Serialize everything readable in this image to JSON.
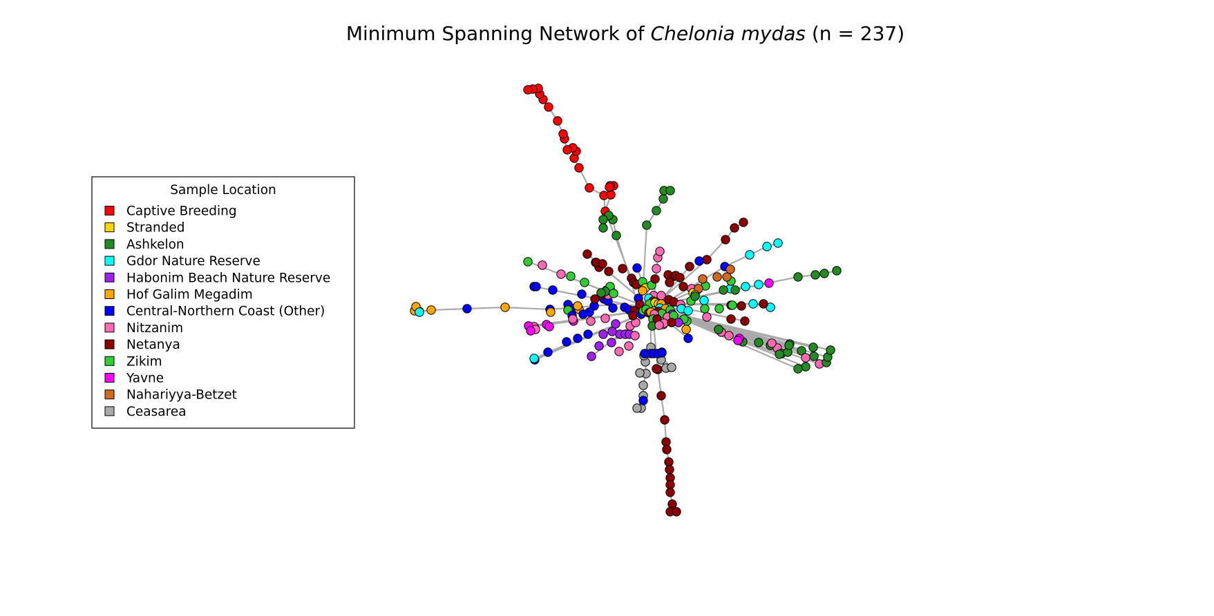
{
  "title": {
    "prefix": "Minimum Spanning Network of ",
    "species": "Chelonia mydas",
    "suffix": " (n = 237)"
  },
  "legend": {
    "title": "Sample Location",
    "entries": [
      {
        "label": "Captive Breeding",
        "color": "#ff0000"
      },
      {
        "label": "Stranded",
        "color": "#ffd700"
      },
      {
        "label": "Ashkelon",
        "color": "#228b22"
      },
      {
        "label": "Gdor Nature Reserve",
        "color": "#00ffff"
      },
      {
        "label": "Habonim Beach Nature Reserve",
        "color": "#a020f0"
      },
      {
        "label": "Hof Galim Megadim",
        "color": "#ffa500"
      },
      {
        "label": "Central-Northern Coast (Other)",
        "color": "#0000ff"
      },
      {
        "label": "Nitzanim",
        "color": "#ff69b4"
      },
      {
        "label": "Netanya",
        "color": "#8b0000"
      },
      {
        "label": "Zikim",
        "color": "#32cd32"
      },
      {
        "label": "Yavne",
        "color": "#ff00ff"
      },
      {
        "label": "Nahariyya-Betzet",
        "color": "#d2691e"
      },
      {
        "label": "Ceasarea",
        "color": "#a9a9a9"
      }
    ]
  },
  "style": {
    "edge_color": "#aaaaaa",
    "node_stroke": "#000000"
  }
}
